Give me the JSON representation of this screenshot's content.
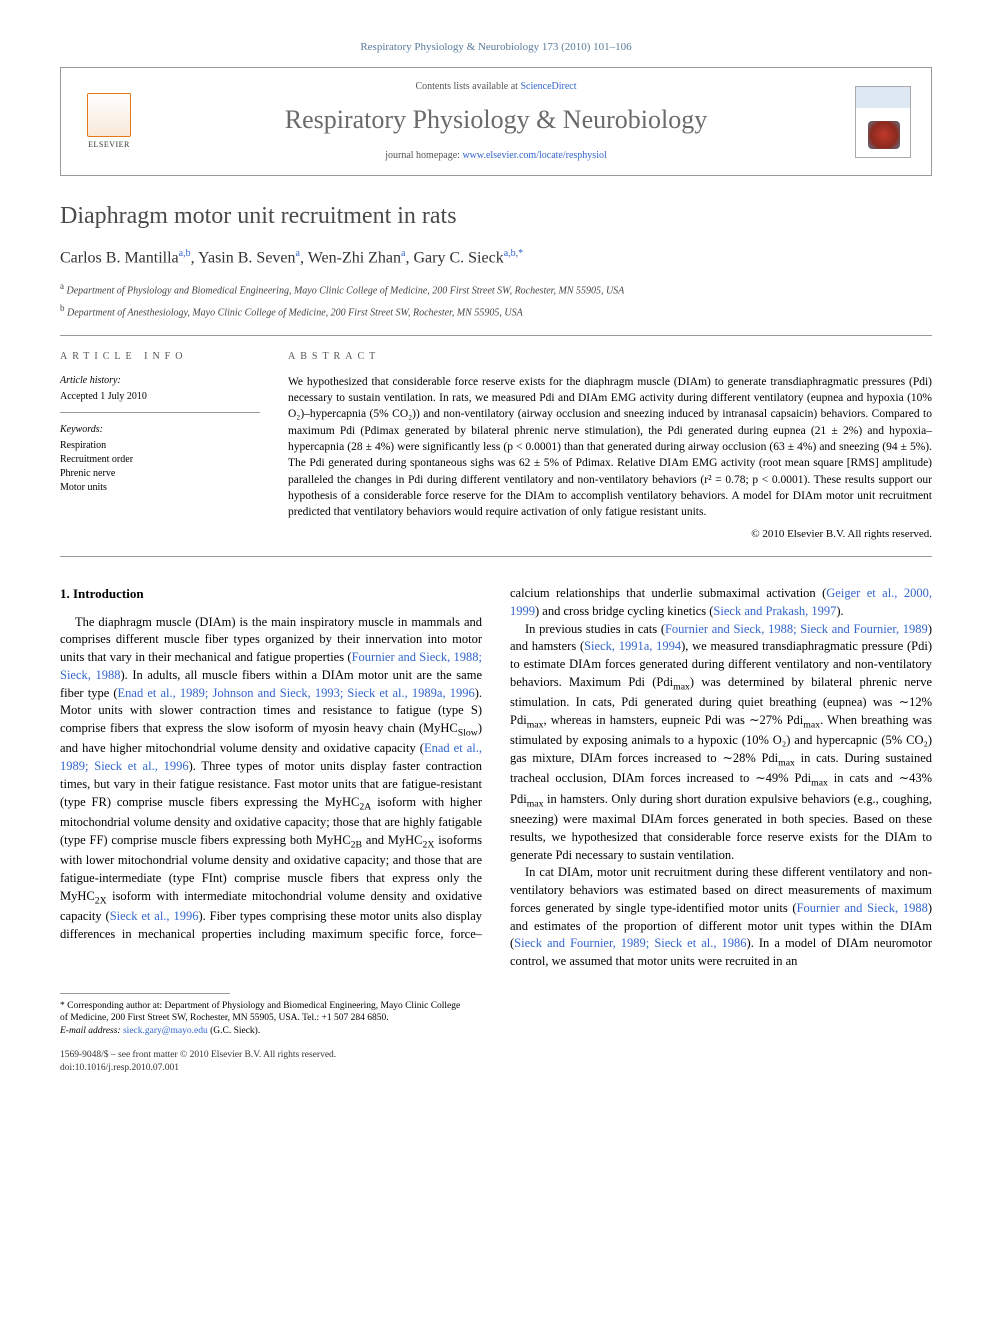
{
  "header": {
    "citation": "Respiratory Physiology & Neurobiology 173 (2010) 101–106",
    "contents_prefix": "Contents lists available at ",
    "contents_link": "ScienceDirect",
    "journal_name": "Respiratory Physiology & Neurobiology",
    "homepage_prefix": "journal homepage: ",
    "homepage_link": "www.elsevier.com/locate/resphysiol",
    "elsevier_label": "ELSEVIER"
  },
  "title": "Diaphragm motor unit recruitment in rats",
  "authors_html": "Carlos B. Mantilla",
  "authors": [
    {
      "name": "Carlos B. Mantilla",
      "marks": "a,b"
    },
    {
      "name": "Yasin B. Seven",
      "marks": "a"
    },
    {
      "name": "Wen-Zhi Zhan",
      "marks": "a"
    },
    {
      "name": "Gary C. Sieck",
      "marks": "a,b,*"
    }
  ],
  "affiliations": [
    {
      "mark": "a",
      "text": "Department of Physiology and Biomedical Engineering, Mayo Clinic College of Medicine, 200 First Street SW, Rochester, MN 55905, USA"
    },
    {
      "mark": "b",
      "text": "Department of Anesthesiology, Mayo Clinic College of Medicine, 200 First Street SW, Rochester, MN 55905, USA"
    }
  ],
  "article_info": {
    "heading": "article info",
    "history_label": "Article history:",
    "history_value": "Accepted 1 July 2010",
    "keywords_label": "Keywords:",
    "keywords": [
      "Respiration",
      "Recruitment order",
      "Phrenic nerve",
      "Motor units"
    ]
  },
  "abstract": {
    "heading": "abstract",
    "text": "We hypothesized that considerable force reserve exists for the diaphragm muscle (DIAm) to generate transdiaphragmatic pressures (Pdi) necessary to sustain ventilation. In rats, we measured Pdi and DIAm EMG activity during different ventilatory (eupnea and hypoxia (10% O₂)–hypercapnia (5% CO₂)) and non-ventilatory (airway occlusion and sneezing induced by intranasal capsaicin) behaviors. Compared to maximum Pdi (Pdimax generated by bilateral phrenic nerve stimulation), the Pdi generated during eupnea (21 ± 2%) and hypoxia–hypercapnia (28 ± 4%) were significantly less (p < 0.0001) than that generated during airway occlusion (63 ± 4%) and sneezing (94 ± 5%). The Pdi generated during spontaneous sighs was 62 ± 5% of Pdimax. Relative DIAm EMG activity (root mean square [RMS] amplitude) paralleled the changes in Pdi during different ventilatory and non-ventilatory behaviors (r² = 0.78; p < 0.0001). These results support our hypothesis of a considerable force reserve for the DIAm to accomplish ventilatory behaviors. A model for DIAm motor unit recruitment predicted that ventilatory behaviors would require activation of only fatigue resistant units.",
    "copyright": "© 2010 Elsevier B.V. All rights reserved."
  },
  "section1": {
    "heading": "1.  Introduction",
    "p1a": "The diaphragm muscle (DIAm) is the main inspiratory muscle in mammals and comprises different muscle fiber types organized by their innervation into motor units that vary in their mechanical and fatigue properties (",
    "p1c1": "Fournier and Sieck, 1988; Sieck, 1988",
    "p1b": "). In adults, all muscle fibers within a DIAm motor unit are the same fiber type (",
    "p1c2": "Enad et al., 1989; Johnson and Sieck, 1993; Sieck et al., 1989a, 1996",
    "p1c": "). Motor units with slower contraction times and resistance to fatigue (type S) comprise fibers that express the slow isoform of myosin heavy chain (MyHC",
    "p1d": ") and have higher mitochondrial volume density and oxidative capacity (",
    "p1c3": "Enad et al., 1989; Sieck et al., 1996",
    "p1e": "). Three types of motor units display faster contraction times, but vary in their fatigue resistance. Fast motor units that are fatigue-resistant (type FR) comprise muscle fibers expressing the MyHC",
    "p1f": " isoform with higher mitochondrial volume density and oxidative capacity; those that are highly fatigable (type FF) comprise muscle fibers expressing both MyHC",
    "p1g": " and MyHC",
    "p1h": " isoforms with lower mitochondrial volume density and oxidative capacity; and those that are fatigue-intermediate (type FInt) comprise muscle fibers that express only the MyHC",
    "p1i": " isoform with intermediate mitochondrial volume density and oxidative capacity (",
    "p1c4": "Sieck et al., 1996",
    "p1j": "). Fiber types comprising these motor units also display differences in mechanical properties including maximum specific force, force–calcium relationships that underlie submaximal activation (",
    "p1c5": "Geiger et al., 2000, 1999",
    "p1k": ") and cross bridge cycling kinetics (",
    "p1c6": "Sieck and Prakash, 1997",
    "p1l": ").",
    "p2a": "In previous studies in cats (",
    "p2c1": "Fournier and Sieck, 1988; Sieck and Fournier, 1989",
    "p2b": ") and hamsters (",
    "p2c2": "Sieck, 1991a, 1994",
    "p2c": "), we measured transdiaphragmatic pressure (Pdi) to estimate DIAm forces generated during different ventilatory and non-ventilatory behaviors. Maximum Pdi (Pdi",
    "p2d": ") was determined by bilateral phrenic nerve stimulation. In cats, Pdi generated during quiet breathing (eupnea) was ∼12% Pdi",
    "p2e": ", whereas in hamsters, eupneic Pdi was ∼27% Pdi",
    "p2f": ". When breathing was stimulated by exposing animals to a hypoxic (10% O₂) and hypercapnic (5% CO₂) gas mixture, DIAm forces increased to ∼28% Pdi",
    "p2g": " in cats. During sustained tracheal occlusion, DIAm forces increased to ∼49% Pdi",
    "p2h": " in cats and ∼43% Pdi",
    "p2i": " in hamsters. Only during short duration expulsive behaviors (e.g., coughing, sneezing) were maximal DIAm forces generated in both species. Based on these results, we hypothesized that considerable force reserve exists for the DIAm to generate Pdi necessary to sustain ventilation.",
    "p3a": "In cat DIAm, motor unit recruitment during these different ventilatory and non-ventilatory behaviors was estimated based on direct measurements of maximum forces generated by single type-identified motor units (",
    "p3c1": "Fournier and Sieck, 1988",
    "p3b": ") and estimates of the proportion of different motor unit types within the DIAm (",
    "p3c2": "Sieck and Fournier, 1989; Sieck et al., 1986",
    "p3c": "). In a model of DIAm neuromotor control, we assumed that motor units were recruited in an"
  },
  "footnotes": {
    "corr_label": "* Corresponding author at: Department of Physiology and Biomedical Engineering, Mayo Clinic College of Medicine, 200 First Street SW, Rochester, MN 55905, USA. Tel.: +1 507 284 6850.",
    "email_label": "E-mail address: ",
    "email": "sieck.gary@mayo.edu",
    "email_who": " (G.C. Sieck)."
  },
  "bottom": {
    "left": "1569-9048/$ – see front matter © 2010 Elsevier B.V. All rights reserved.",
    "doi": "doi:10.1016/j.resp.2010.07.001"
  },
  "colors": {
    "link": "#3366cc",
    "heading_gray": "#4a4a4a",
    "border": "#999999"
  }
}
